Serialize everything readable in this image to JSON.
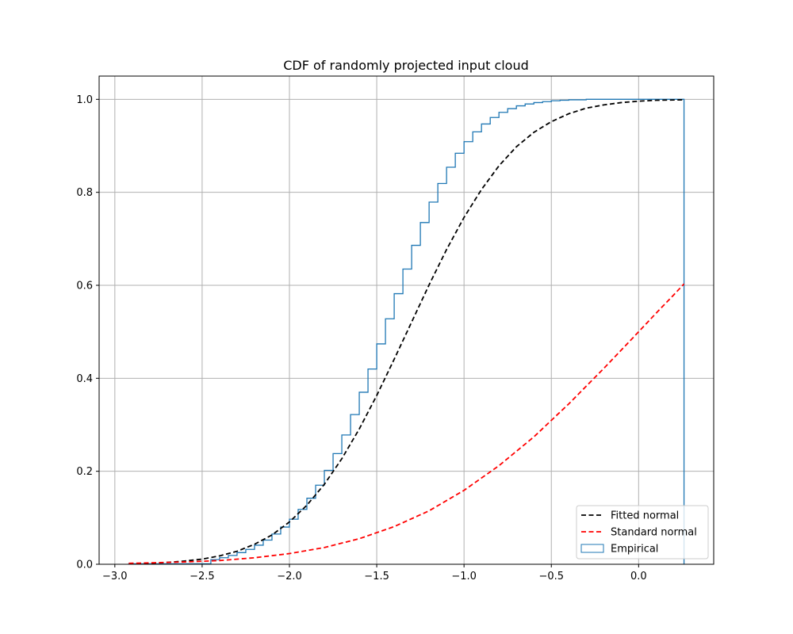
{
  "chart_data": {
    "type": "line",
    "title": "CDF of randomly projected input cloud",
    "xlabel": "",
    "ylabel": "",
    "xlim": [
      -3.09,
      0.43
    ],
    "ylim": [
      0.0,
      1.05
    ],
    "xticks": [
      -3.0,
      -2.5,
      -2.0,
      -1.5,
      -1.0,
      -0.5,
      0.0
    ],
    "xtick_labels": [
      "−3.0",
      "−2.5",
      "−2.0",
      "−1.5",
      "−1.0",
      "−0.5",
      "0.0"
    ],
    "yticks": [
      0.0,
      0.2,
      0.4,
      0.6,
      0.8,
      1.0
    ],
    "ytick_labels": [
      "0.0",
      "0.2",
      "0.4",
      "0.6",
      "0.8",
      "1.0"
    ],
    "grid": true,
    "legend_position": "lower-right",
    "colors": {
      "fitted": "#000000",
      "standard": "#ff0000",
      "empirical": "#1f77b4",
      "grid": "#b0b0b0"
    },
    "series": [
      {
        "name": "Fitted normal",
        "style": "dashed",
        "x": [
          -2.92,
          -2.8,
          -2.7,
          -2.6,
          -2.5,
          -2.4,
          -2.3,
          -2.2,
          -2.1,
          -2.0,
          -1.9,
          -1.8,
          -1.7,
          -1.6,
          -1.5,
          -1.4,
          -1.3,
          -1.2,
          -1.1,
          -1.0,
          -0.9,
          -0.8,
          -0.7,
          -0.6,
          -0.5,
          -0.4,
          -0.3,
          -0.2,
          -0.1,
          0.0,
          0.1,
          0.26
        ],
        "y": [
          0.001,
          0.002,
          0.004,
          0.007,
          0.011,
          0.018,
          0.028,
          0.043,
          0.063,
          0.091,
          0.127,
          0.172,
          0.227,
          0.291,
          0.363,
          0.441,
          0.521,
          0.601,
          0.677,
          0.746,
          0.806,
          0.857,
          0.898,
          0.929,
          0.952,
          0.969,
          0.981,
          0.988,
          0.993,
          0.996,
          0.998,
          0.999
        ]
      },
      {
        "name": "Standard normal",
        "style": "dashed",
        "x": [
          -2.92,
          -2.8,
          -2.6,
          -2.4,
          -2.2,
          -2.0,
          -1.8,
          -1.6,
          -1.4,
          -1.2,
          -1.0,
          -0.8,
          -0.6,
          -0.4,
          -0.2,
          0.0,
          0.1,
          0.2,
          0.26
        ],
        "y": [
          0.002,
          0.003,
          0.005,
          0.008,
          0.014,
          0.023,
          0.036,
          0.055,
          0.081,
          0.115,
          0.159,
          0.212,
          0.274,
          0.345,
          0.421,
          0.5,
          0.54,
          0.579,
          0.603
        ]
      },
      {
        "name": "Empirical",
        "style": "step",
        "x": [
          -2.92,
          -2.45,
          -2.4,
          -2.35,
          -2.3,
          -2.25,
          -2.2,
          -2.15,
          -2.1,
          -2.05,
          -2.0,
          -1.95,
          -1.9,
          -1.85,
          -1.8,
          -1.75,
          -1.7,
          -1.65,
          -1.6,
          -1.55,
          -1.5,
          -1.45,
          -1.4,
          -1.35,
          -1.3,
          -1.25,
          -1.2,
          -1.15,
          -1.1,
          -1.05,
          -1.0,
          -0.95,
          -0.9,
          -0.85,
          -0.8,
          -0.75,
          -0.7,
          -0.65,
          -0.6,
          -0.55,
          -0.5,
          -0.45,
          -0.4,
          -0.35,
          -0.3,
          -0.25,
          -0.2,
          -0.15,
          -0.1,
          -0.05,
          0.0,
          0.26
        ],
        "y": [
          0.001,
          0.01,
          0.014,
          0.019,
          0.025,
          0.032,
          0.041,
          0.052,
          0.065,
          0.08,
          0.097,
          0.118,
          0.142,
          0.17,
          0.202,
          0.238,
          0.278,
          0.322,
          0.37,
          0.42,
          0.474,
          0.528,
          0.582,
          0.635,
          0.686,
          0.735,
          0.779,
          0.819,
          0.854,
          0.884,
          0.909,
          0.93,
          0.947,
          0.961,
          0.972,
          0.98,
          0.986,
          0.99,
          0.993,
          0.995,
          0.997,
          0.998,
          0.999,
          0.999,
          1.0,
          1.0,
          1.0,
          1.0,
          1.0,
          1.0,
          1.0,
          1.0
        ]
      }
    ]
  }
}
